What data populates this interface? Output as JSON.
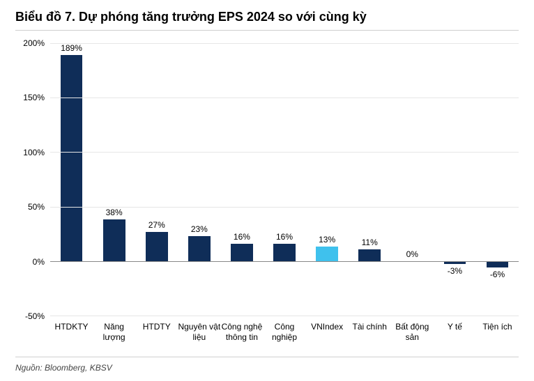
{
  "title": "Biểu đồ 7. Dự phóng tăng trưởng EPS 2024 so với cùng kỳ",
  "source": "Nguồn: Bloomberg, KBSV",
  "chart": {
    "type": "bar",
    "ylim": [
      -50,
      200
    ],
    "ytick_step": 50,
    "yticks": [
      -50,
      0,
      50,
      100,
      150,
      200
    ],
    "ytick_labels": [
      "-50%",
      "0%",
      "50%",
      "100%",
      "150%",
      "200%"
    ],
    "grid_color": "#e6e6e6",
    "baseline_color": "#888888",
    "background_color": "#ffffff",
    "label_fontsize": 12,
    "title_fontsize": 18,
    "bar_width": 0.52,
    "colors": {
      "default": "#0f2d58",
      "highlight": "#3fc1ed"
    },
    "categories": [
      "HTDKTY",
      "Năng lượng",
      "HTDTY",
      "Nguyên vật liệu",
      "Công nghệ thông tin",
      "Công nghiệp",
      "VNIndex",
      "Tài chính",
      "Bất động sản",
      "Y tế",
      "Tiện ích"
    ],
    "values": [
      189,
      38,
      27,
      23,
      16,
      16,
      13,
      11,
      0,
      -3,
      -6
    ],
    "value_labels": [
      "189%",
      "38%",
      "27%",
      "23%",
      "16%",
      "16%",
      "13%",
      "11%",
      "0%",
      "-3%",
      "-6%"
    ],
    "bar_colors": [
      "#0f2d58",
      "#0f2d58",
      "#0f2d58",
      "#0f2d58",
      "#0f2d58",
      "#0f2d58",
      "#3fc1ed",
      "#0f2d58",
      "#0f2d58",
      "#0f2d58",
      "#0f2d58"
    ]
  }
}
